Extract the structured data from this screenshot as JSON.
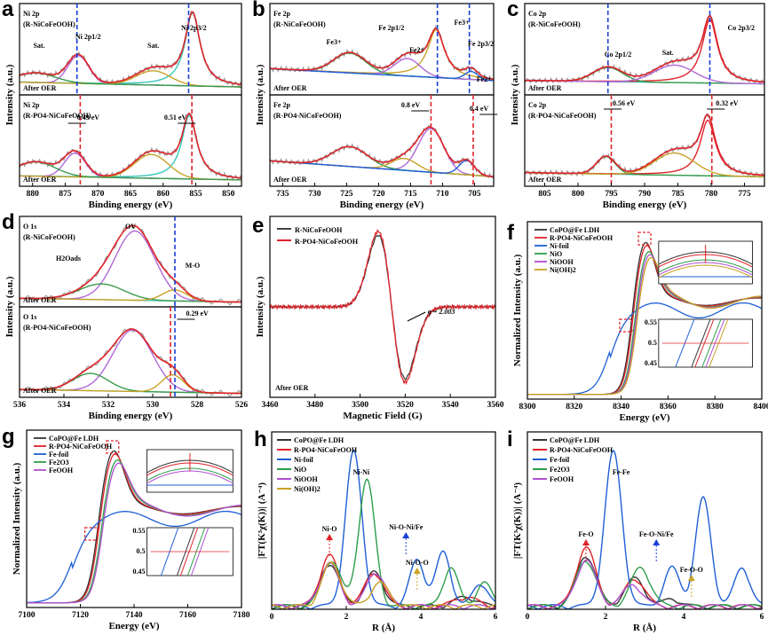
{
  "chart_data": [
    {
      "panel": "a",
      "type": "line",
      "xlabel": "Binding energy (eV)",
      "ylabel": "Intensity (a.u.)",
      "xlim": [
        882,
        848
      ],
      "xticks": [
        880,
        875,
        870,
        865,
        860,
        855,
        850
      ],
      "sub": [
        {
          "title": "Ni 2p",
          "sample": "(R-NiCoFeOOH)",
          "footer": "After OER",
          "peaks": [
            {
              "x": 855.5,
              "label": "Ni 2p3/2"
            },
            {
              "x": 873.0,
              "label": "Ni 2p1/2"
            },
            {
              "x": 861.5,
              "label": "Sat."
            },
            {
              "x": 879.0,
              "label": "Sat."
            }
          ],
          "dashed_line_x": 873.2,
          "dashed_color": "#1a3fd6"
        },
        {
          "title": "Ni 2p",
          "sample": "(R-PO4-NiCoFeOOH)",
          "footer": "After OER",
          "shifts": [
            {
              "text": "0.49 eV",
              "x": 873.2
            },
            {
              "text": "0.51 eV",
              "x": 856.0
            }
          ],
          "dashed_line_x": 872.7,
          "dashed_color": "#e0242a"
        }
      ]
    },
    {
      "panel": "b",
      "type": "line",
      "xlabel": "Binding energy (eV)",
      "ylabel": "Intensity (a.u.)",
      "xlim": [
        737,
        702
      ],
      "xticks": [
        735,
        730,
        725,
        720,
        715,
        710,
        705
      ],
      "sub": [
        {
          "title": "Fe 2p",
          "sample": "(R-NiCoFeOOH)",
          "footer": "After OER",
          "labels": [
            "Fe3+",
            "Fe 2p1/2",
            "Fe2+",
            "Fe3+",
            "Fe 2p3/2",
            "Fe2+"
          ]
        },
        {
          "title": "Fe 2p",
          "sample": "(R-PO4-NiCoFeOOH)",
          "footer": "After OER",
          "shifts": [
            {
              "text": "0.8 eV"
            },
            {
              "text": "0.4 eV"
            }
          ]
        }
      ]
    },
    {
      "panel": "c",
      "type": "line",
      "xlabel": "Binding energy (eV)",
      "ylabel": "Intensity (a.u.)",
      "xlim": [
        808,
        772
      ],
      "xticks": [
        805,
        800,
        795,
        790,
        785,
        780,
        775
      ],
      "sub": [
        {
          "title": "Co 2p",
          "sample": "(R-NiCoFeOOH)",
          "footer": "After OER",
          "labels": [
            "Co 2p1/2",
            "Sat.",
            "Co 2p3/2"
          ]
        },
        {
          "title": "Co 2p",
          "sample": "(R-PO4-NiCoFeOOH)",
          "footer": "After OER",
          "shifts": [
            {
              "text": "0.56 eV"
            },
            {
              "text": "0.32 eV"
            }
          ]
        }
      ]
    },
    {
      "panel": "d",
      "type": "line",
      "xlabel": "Binding energy (eV)",
      "ylabel": "Intensity (a.u.)",
      "xlim": [
        536,
        526
      ],
      "xticks": [
        536,
        534,
        532,
        530,
        528,
        526
      ],
      "sub": [
        {
          "title": "O 1s",
          "sample": "(R-NiCoFeOOH)",
          "footer": "After OER",
          "labels": [
            "OV",
            "H2Oads",
            "M-O"
          ]
        },
        {
          "title": "O 1s",
          "sample": "(R-PO4-NiCoFeOOH)",
          "footer": "After OER",
          "shifts": [
            {
              "text": "0.29 eV"
            }
          ]
        }
      ]
    },
    {
      "panel": "e",
      "type": "line",
      "xlabel": "Magnetic Field (G)",
      "ylabel": "Intensity (a.u.)",
      "xlim": [
        3460,
        3560
      ],
      "xticks": [
        3460,
        3480,
        3500,
        3520,
        3540,
        3560
      ],
      "series": [
        {
          "name": "R-NiCoFeOOH",
          "color": "#444444"
        },
        {
          "name": "R-PO4-NiCoFeOOH",
          "color": "#e0242a"
        }
      ],
      "annotations": [
        "g = 2.003",
        "After OER"
      ]
    },
    {
      "panel": "f",
      "type": "line",
      "xlabel": "Energy (eV)",
      "ylabel": "Normalized Intensity (a.u.)",
      "xlim": [
        8300,
        8400
      ],
      "xticks": [
        8300,
        8320,
        8340,
        8360,
        8380,
        8400
      ],
      "series": [
        {
          "name": "CoPO@Fe LDH",
          "color": "#333333"
        },
        {
          "name": "R-PO4-NiCoFeOOH",
          "color": "#e0242a"
        },
        {
          "name": "Ni-foil",
          "color": "#1f5fd6"
        },
        {
          "name": "NiO",
          "color": "#2e9e4a"
        },
        {
          "name": "NiOOH",
          "color": "#b04fd0"
        },
        {
          "name": "Ni(OH)2",
          "color": "#c8a020"
        }
      ],
      "inset_yticks": [
        0.55,
        0.5,
        0.45
      ]
    },
    {
      "panel": "g",
      "type": "line",
      "xlabel": "Energy (eV)",
      "ylabel": "Normalized Intensity (a.u.)",
      "xlim": [
        7100,
        7180
      ],
      "xticks": [
        7100,
        7120,
        7140,
        7160,
        7180
      ],
      "series": [
        {
          "name": "CoPO@Fe LDH",
          "color": "#333333"
        },
        {
          "name": "R-PO4-NiCoFeOOH",
          "color": "#e0242a"
        },
        {
          "name": "Fe-foil",
          "color": "#1f5fd6"
        },
        {
          "name": "Fe2O3",
          "color": "#2e9e4a"
        },
        {
          "name": "FeOOH",
          "color": "#b04fd0"
        }
      ],
      "inset_yticks": [
        0.55,
        0.5,
        0.45
      ]
    },
    {
      "panel": "h",
      "type": "line",
      "xlabel": "R (Å)",
      "ylabel": "|FT(K³χ(K))| (A⁻⁴)",
      "xlim": [
        0,
        6
      ],
      "xticks": [
        0,
        2,
        4,
        6
      ],
      "series": [
        {
          "name": "CoPO@Fe LDH",
          "color": "#333333"
        },
        {
          "name": "R-PO4-NiCoFeOOH",
          "color": "#e0242a"
        },
        {
          "name": "Ni-foil",
          "color": "#1f5fd6"
        },
        {
          "name": "NiO",
          "color": "#2e9e4a"
        },
        {
          "name": "NiOOH",
          "color": "#b04fd0"
        },
        {
          "name": "Ni(OH)2",
          "color": "#c8a020"
        }
      ],
      "annotations": [
        "Ni-Ni",
        "Ni-O",
        "Ni-O-Ni/Fe",
        "Ni-O-O"
      ]
    },
    {
      "panel": "i",
      "type": "line",
      "xlabel": "R (Å)",
      "ylabel": "|FT(K³χ(K))| (A⁻⁴)",
      "xlim": [
        0,
        6
      ],
      "xticks": [
        0,
        2,
        4,
        6
      ],
      "series": [
        {
          "name": "CoPO@Fe LDH",
          "color": "#333333"
        },
        {
          "name": "R-PO4-NiCoFeOOH",
          "color": "#e0242a"
        },
        {
          "name": "Fe-foil",
          "color": "#1f5fd6"
        },
        {
          "name": "Fe2O3",
          "color": "#2e9e4a"
        },
        {
          "name": "FeOOH",
          "color": "#b04fd0"
        }
      ],
      "annotations": [
        "Fe-Fe",
        "Fe-O",
        "Fe-O-Ni/Fe",
        "Fe-O-O"
      ]
    }
  ]
}
